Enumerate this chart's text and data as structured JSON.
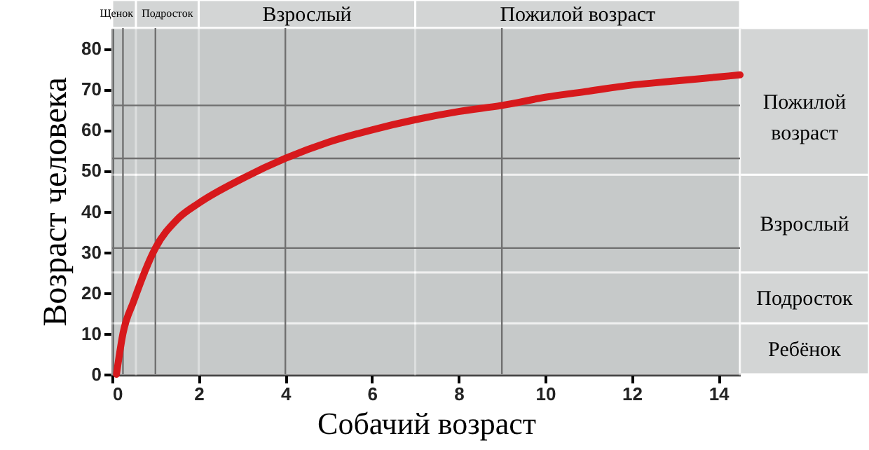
{
  "chart_data": {
    "type": "line",
    "xlabel": "Собачий возраст",
    "ylabel": "Возраст человека",
    "x": [
      0.1,
      0.25,
      0.5,
      1,
      1.5,
      2,
      3,
      4,
      5,
      6,
      7,
      8,
      9,
      10,
      11,
      12,
      13,
      14,
      14.5
    ],
    "series": [
      {
        "color": "#d7191c",
        "values": [
          0,
          10,
          18,
          31,
          38,
          42,
          48,
          53,
          57,
          60,
          62.5,
          64.5,
          66,
          68,
          69.5,
          71,
          72,
          73,
          73.5
        ]
      }
    ],
    "xlim": [
      0,
      14.5
    ],
    "xticks": [
      0,
      2,
      4,
      6,
      8,
      10,
      12,
      14
    ],
    "ylim": [
      0,
      85
    ],
    "yticks": [
      0,
      10,
      20,
      30,
      40,
      50,
      60,
      70,
      80
    ],
    "grid": false,
    "marker": "none",
    "line_style": "solid",
    "bands": [
      {
        "axis": "x",
        "from": 0,
        "to": 0.55,
        "label": "Щенок",
        "color": "#9ea3a3"
      },
      {
        "axis": "x",
        "from": 0.55,
        "to": 2,
        "label": "Подросток",
        "color": "#9ea3a3"
      },
      {
        "axis": "x",
        "from": 2,
        "to": 7,
        "label": "Взрослый",
        "color": "#9ea3a3"
      },
      {
        "axis": "x",
        "from": 7,
        "to": 14.5,
        "label": "Пожилой возраст",
        "color": "#9ea3a3"
      },
      {
        "axis": "y",
        "from": 0,
        "to": 12.5,
        "label": "Ребёнок",
        "color": "#9ea3a3"
      },
      {
        "axis": "y",
        "from": 12.5,
        "to": 25,
        "label": "Подросток",
        "color": "#9ea3a3"
      },
      {
        "axis": "y",
        "from": 25,
        "to": 49,
        "label": "Взрослый",
        "color": "#9ea3a3"
      },
      {
        "axis": "y",
        "from": 49,
        "to": 85,
        "label": "Пожилой возраст",
        "color": "#9ea3a3"
      }
    ],
    "ref_lines": [
      {
        "axis": "y",
        "value": 66,
        "color": "#707070"
      },
      {
        "axis": "y",
        "value": 53,
        "color": "#707070"
      },
      {
        "axis": "y",
        "value": 31,
        "color": "#707070"
      },
      {
        "axis": "x",
        "value": 0.25,
        "color": "#707070"
      },
      {
        "axis": "x",
        "value": 1,
        "color": "#707070"
      },
      {
        "axis": "x",
        "value": 4,
        "color": "#707070"
      },
      {
        "axis": "x",
        "value": 9,
        "color": "#707070"
      }
    ]
  }
}
